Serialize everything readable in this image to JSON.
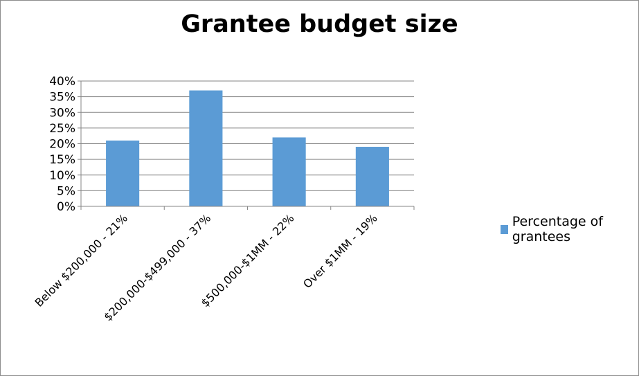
{
  "chart_data": {
    "type": "bar",
    "title": "Grantee budget size",
    "categories": [
      "Below $200,000 - 21%",
      "$200,000-$499,000 - 37%",
      "$500,000-$1MM - 22%",
      "Over $1MM - 19%"
    ],
    "series": [
      {
        "name": "Percentage of grantees",
        "values": [
          21,
          37,
          22,
          19
        ],
        "color": "#5b9bd5"
      }
    ],
    "ylim": [
      0,
      40
    ],
    "y_ticks": [
      "0%",
      "5%",
      "10%",
      "15%",
      "20%",
      "25%",
      "30%",
      "35%",
      "40%"
    ],
    "grid": true,
    "legend": "right"
  },
  "colors": {
    "bar": "#5b9bd5",
    "gridline": "#868686",
    "axis": "#868686"
  }
}
